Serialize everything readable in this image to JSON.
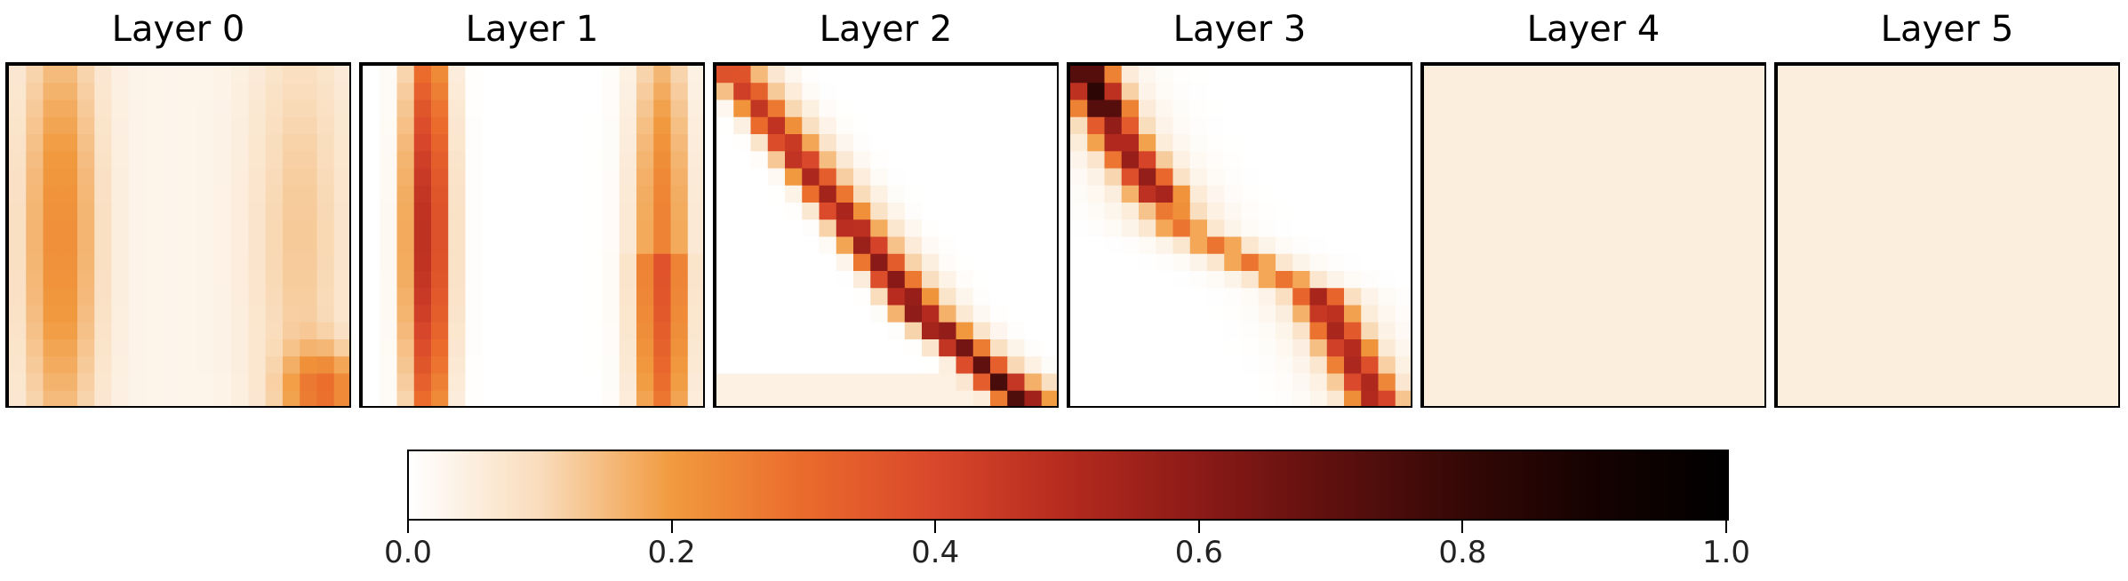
{
  "chart_data": {
    "type": "heatmap",
    "grid_size": [
      20,
      20
    ],
    "value_range": [
      0,
      1
    ],
    "colormap": "Oranges-to-black (white → orange → red → black)",
    "panels": [
      {
        "title": "Layer 0",
        "pattern": "vertical_bands",
        "params": {
          "bands": [
            {
              "col": 2.5,
              "width": 1.6,
              "amp": 0.2
            },
            {
              "col": 16.5,
              "width": 2.0,
              "amp": 0.1
            }
          ],
          "corner": {
            "row": 18.5,
            "col": 18.0,
            "amp": 0.22
          }
        },
        "base": 0.03
      },
      {
        "title": "Layer 1",
        "pattern": "vertical_bands",
        "params": {
          "bands": [
            {
              "col": 3.3,
              "width": 0.9,
              "amp": 0.5
            },
            {
              "col": 17.0,
              "width": 1.2,
              "amp": 0.25
            }
          ]
        },
        "base": 0.0
      },
      {
        "title": "Layer 2",
        "pattern": "diagonal",
        "params": {
          "slope": 0.78,
          "offset": 0.4,
          "width": 0.8,
          "amp": 0.7
        },
        "base": 0.0
      },
      {
        "title": "Layer 3",
        "pattern": "piecewise_diagonal",
        "params": {
          "amp": 0.75
        },
        "base": 0.0
      },
      {
        "title": "Layer 4",
        "pattern": "uniform",
        "params": {
          "value": 0.05
        },
        "base": 0.05
      },
      {
        "title": "Layer 5",
        "pattern": "uniform",
        "params": {
          "value": 0.05
        },
        "base": 0.05
      }
    ],
    "colorbar": {
      "ticks": [
        "0.0",
        "0.2",
        "0.4",
        "0.6",
        "0.8",
        "1.0"
      ],
      "tick_values": [
        0.0,
        0.2,
        0.4,
        0.6,
        0.8,
        1.0
      ]
    }
  }
}
